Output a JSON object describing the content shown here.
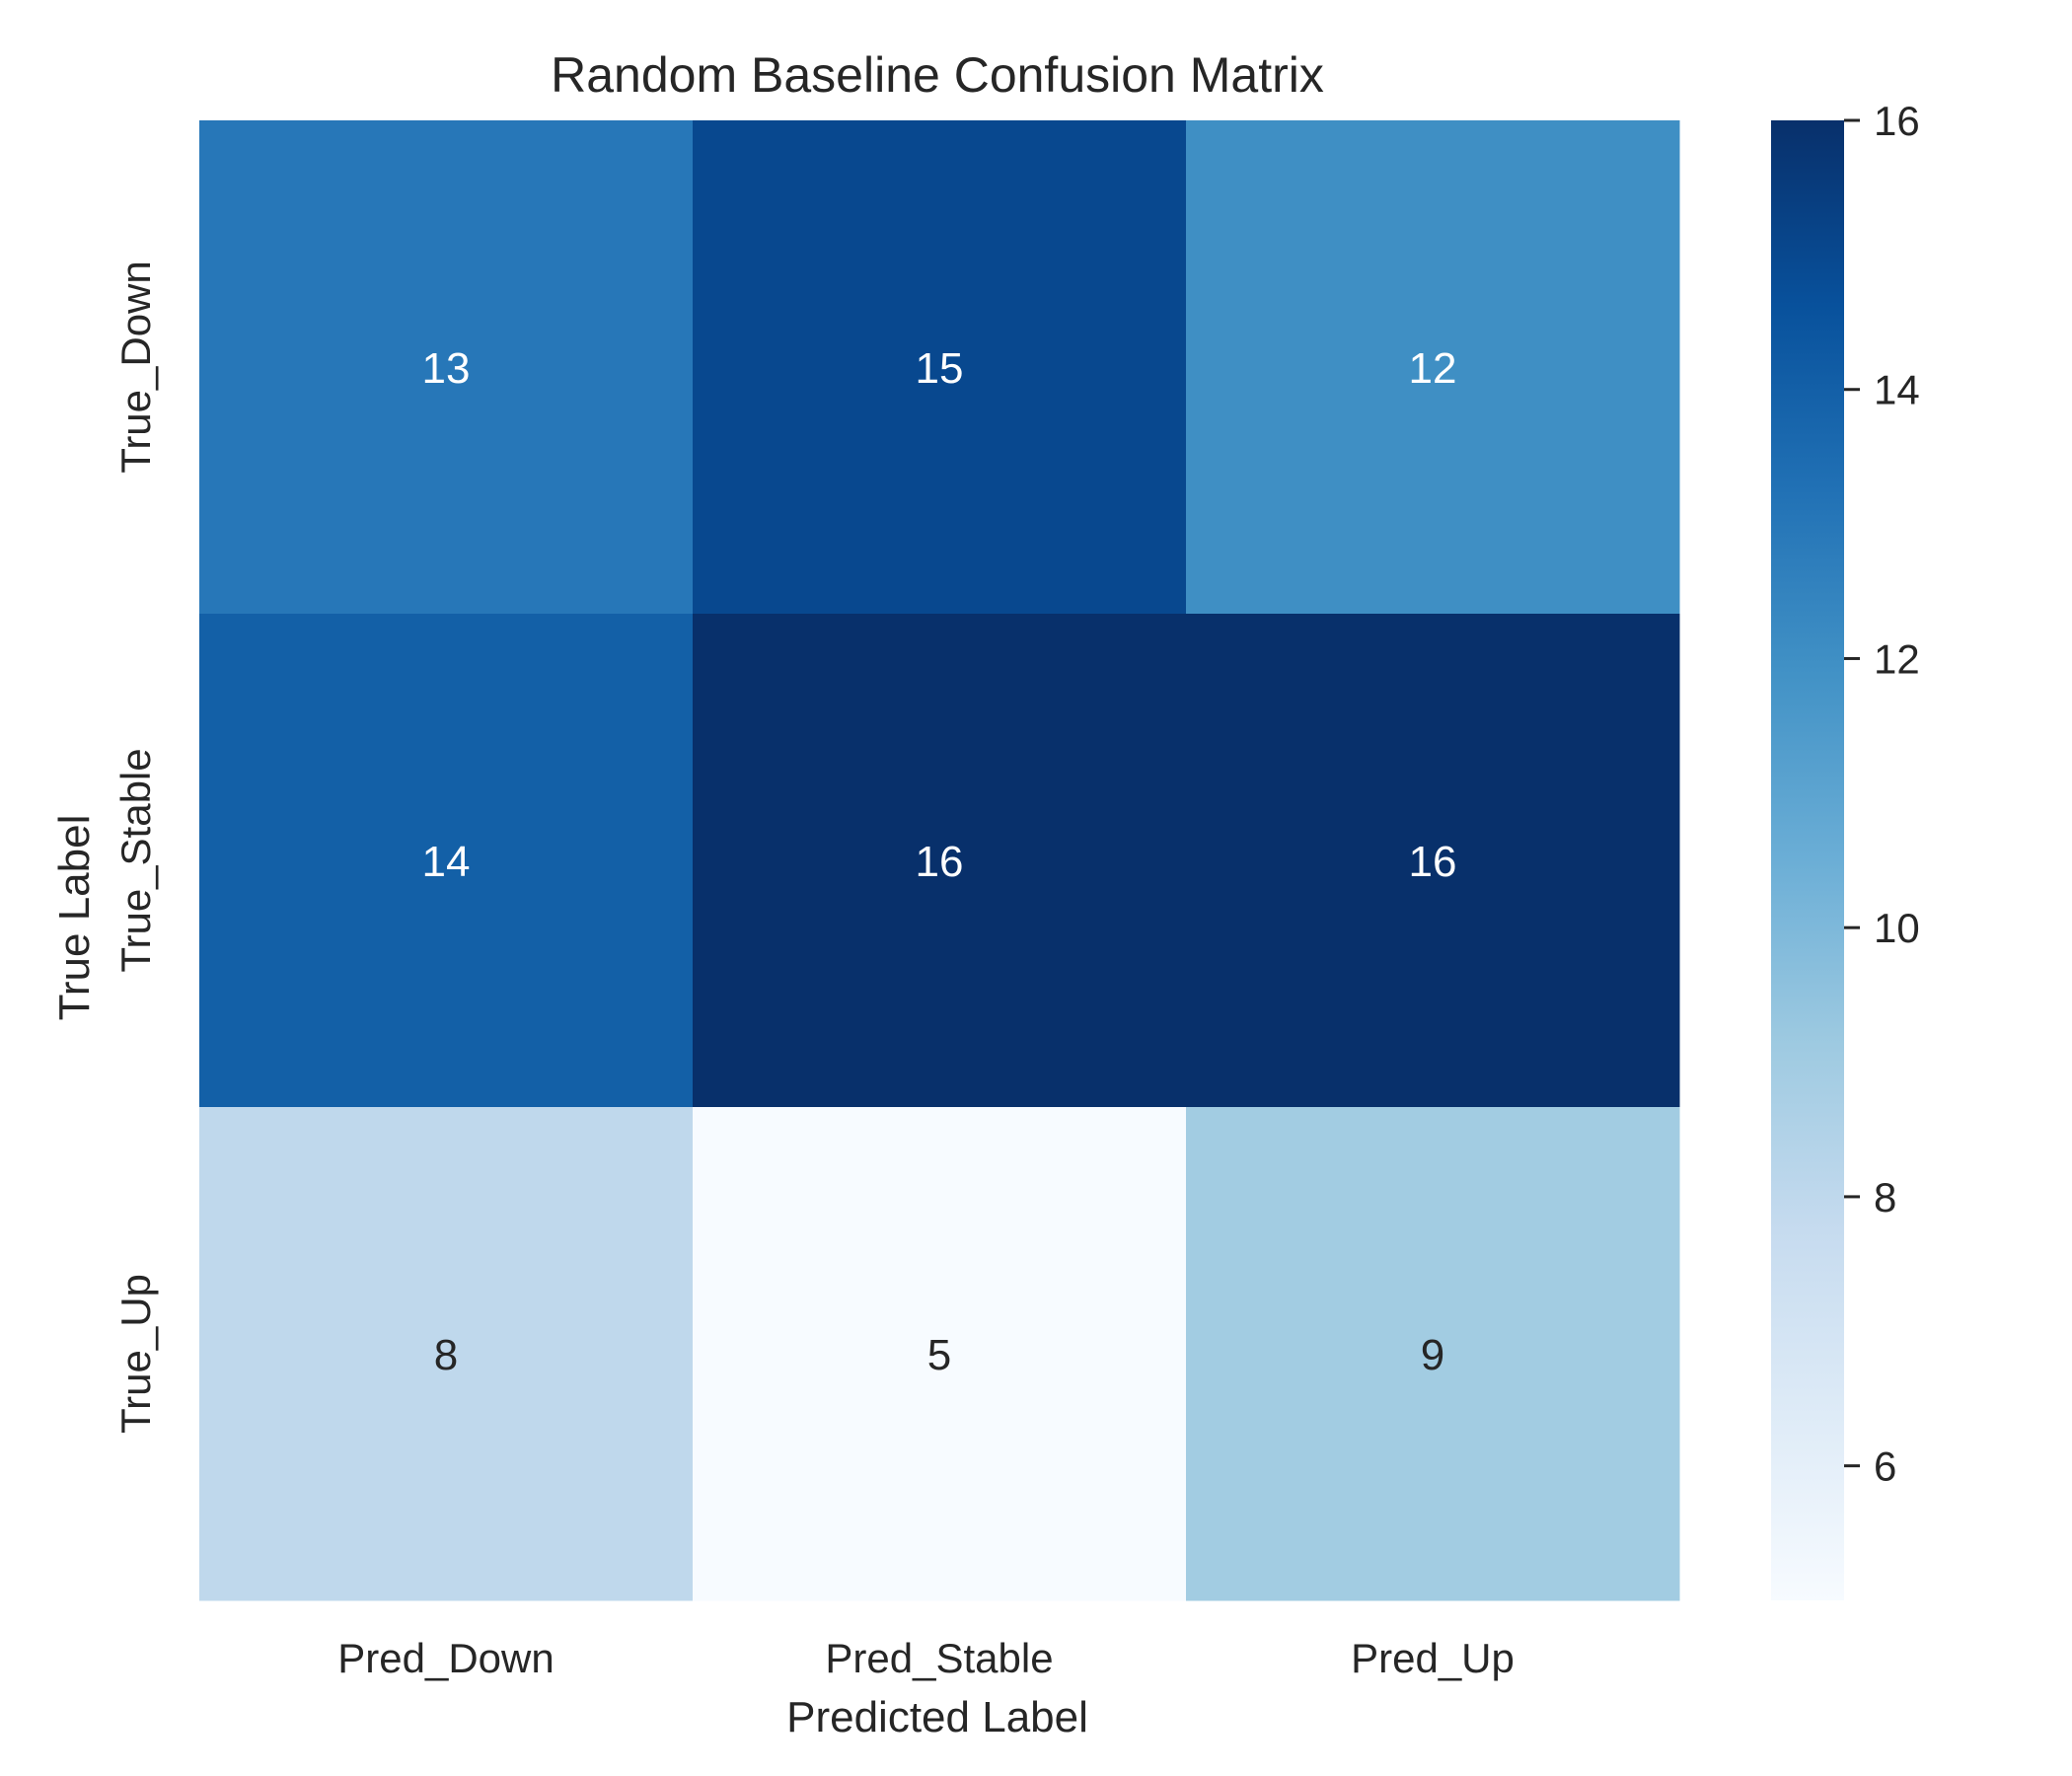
{
  "chart_data": {
    "type": "heatmap",
    "title": "Random Baseline Confusion Matrix",
    "xlabel": "Predicted Label",
    "ylabel": "True Label",
    "x_categories": [
      "Pred_Down",
      "Pred_Stable",
      "Pred_Up"
    ],
    "y_categories": [
      "True_Down",
      "True_Stable",
      "True_Up"
    ],
    "values": [
      [
        13,
        15,
        12
      ],
      [
        14,
        16,
        16
      ],
      [
        8,
        5,
        9
      ]
    ],
    "colormap": "Blues",
    "color_range": [
      5,
      16
    ],
    "colorbar_ticks": [
      6,
      8,
      10,
      12,
      14,
      16
    ],
    "annotation_colors": {
      "dark_cell_text": "#ffffff",
      "light_cell_text": "#262626"
    }
  }
}
